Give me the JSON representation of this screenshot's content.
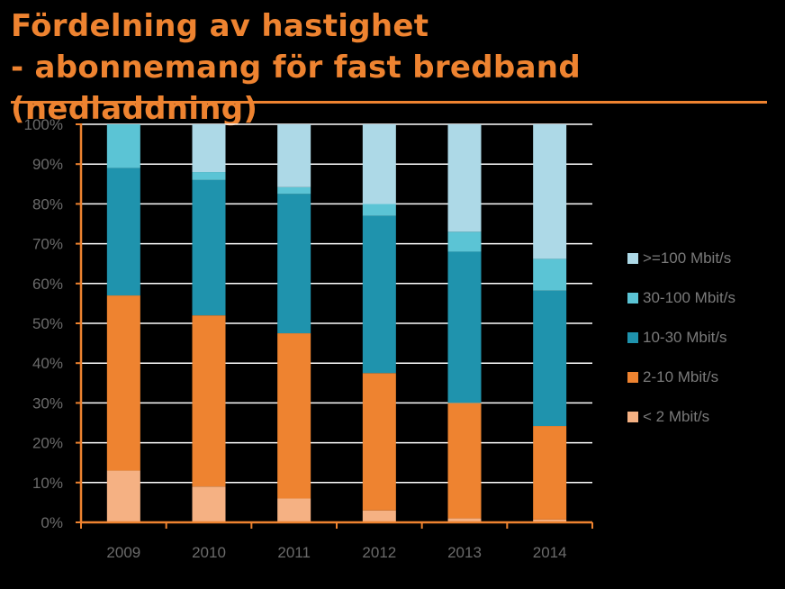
{
  "title_line1": "Fördelning av hastighet",
  "title_line2": "- abonnemang för fast bredband (nedladdning)",
  "colors": {
    "accent": "#ee8330",
    "axis": "#ee8330",
    "grid": "#ffffff",
    "tick_text": "#6b6b6b"
  },
  "chart_data": {
    "type": "bar",
    "stacked": true,
    "categories": [
      "2009",
      "2010",
      "2011",
      "2012",
      "2013",
      "2014"
    ],
    "ylim": [
      0,
      100
    ],
    "yticks": [
      "0%",
      "10%",
      "20%",
      "30%",
      "40%",
      "50%",
      "60%",
      "70%",
      "80%",
      "90%",
      "100%"
    ],
    "grid": true,
    "legend_position": "right",
    "xlabel": "",
    "ylabel": "",
    "series": [
      {
        "name": "< 2 Mbit/s",
        "color": "#f5b183",
        "values": [
          13,
          9,
          6,
          3,
          1,
          0.7
        ]
      },
      {
        "name": "2-10 Mbit/s",
        "color": "#ee8330",
        "values": [
          44,
          43,
          41.5,
          34.5,
          29,
          23.5
        ]
      },
      {
        "name": "10-30 Mbit/s",
        "color": "#1f93ad",
        "values": [
          32,
          34,
          35,
          39.5,
          38,
          34
        ]
      },
      {
        "name": "30-100 Mbit/s",
        "color": "#5bc4d5",
        "values": [
          11,
          2,
          1.7,
          3,
          5,
          8
        ]
      },
      {
        "name": ">=100 Mbit/s",
        "color": "#add9e7",
        "values": [
          0,
          12,
          15.8,
          20,
          27,
          33.8
        ]
      }
    ]
  }
}
